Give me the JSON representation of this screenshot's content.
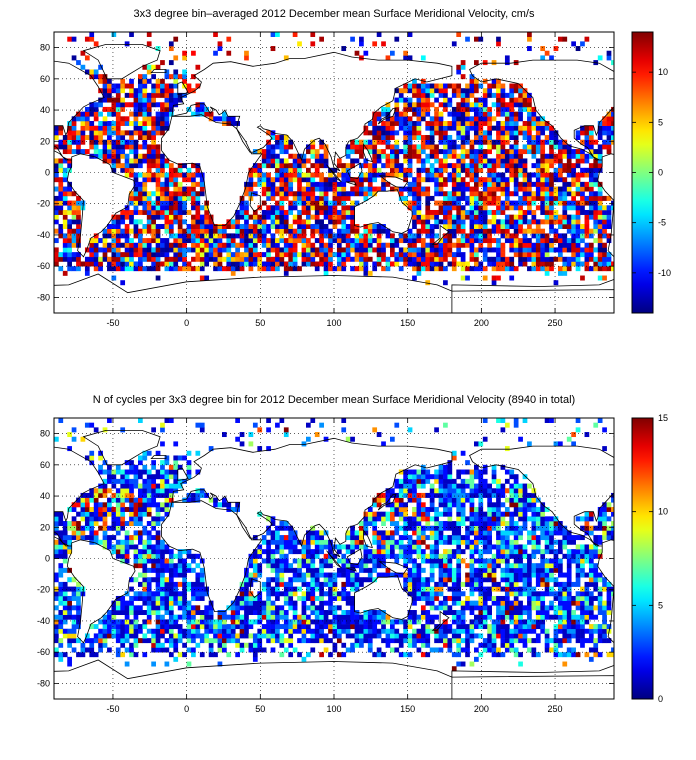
{
  "chart_data": [
    {
      "type": "heatmap",
      "title": "3x3 degree bin–averaged 2012 December mean Surface Meridional Velocity, cm/s",
      "xlim": [
        -90,
        290
      ],
      "ylim": [
        -90,
        90
      ],
      "xticks": [
        -50,
        0,
        50,
        100,
        150,
        200,
        250
      ],
      "yticks": [
        80,
        60,
        40,
        20,
        0,
        -20,
        -40,
        -60,
        -80
      ],
      "grid": "dotted",
      "bin_size_deg": 3,
      "colorbar": {
        "min": -14,
        "max": 14,
        "ticks": [
          10,
          5,
          0,
          -5,
          -10
        ],
        "colormap": "jet"
      },
      "field": "meridional_velocity",
      "seed": 1337
    },
    {
      "type": "heatmap",
      "title": "N of cycles per 3x3 degree bin for 2012 December mean Surface Meridional Velocity (8940 in total)",
      "xlim": [
        -90,
        290
      ],
      "ylim": [
        -90,
        90
      ],
      "xticks": [
        -50,
        0,
        50,
        100,
        150,
        200,
        250
      ],
      "yticks": [
        80,
        60,
        40,
        20,
        0,
        -20,
        -40,
        -60,
        -80
      ],
      "grid": "dotted",
      "bin_size_deg": 3,
      "colorbar": {
        "min": 0,
        "max": 15,
        "ticks": [
          15,
          10,
          5,
          0
        ],
        "colormap": "jet"
      },
      "field": "cycle_count",
      "seed": 4242
    }
  ]
}
